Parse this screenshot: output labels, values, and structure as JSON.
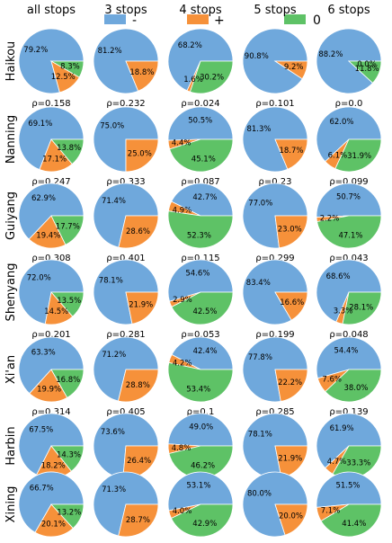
{
  "columns": [
    "all stops",
    "3 stops",
    "4 stops",
    "5 stops",
    "6 stops"
  ],
  "rows": [
    "Haikou",
    "Nanning",
    "Guiyang",
    "Shenyang",
    "Xi'an",
    "Harbin",
    "Xining"
  ],
  "legend": [
    {
      "label": "-",
      "color": "#6fa8dc"
    },
    {
      "label": "+",
      "color": "#f6913a"
    },
    {
      "label": "0",
      "color": "#5ec266"
    }
  ],
  "rho_symbol": "ρ=",
  "chart_data": {
    "type": "pie",
    "slice_order": [
      "-",
      "+",
      "0"
    ],
    "colors": {
      "-": "#6fa8dc",
      "+": "#f6913a",
      "0": "#5ec266"
    },
    "value_format": "percent (1 decimal)",
    "cells": [
      [
        {
          "values": [
            79.2,
            12.5,
            8.3
          ],
          "rho": "ρ=0.158"
        },
        {
          "values": [
            81.2,
            18.8,
            0.0
          ],
          "rho": "ρ=0.232"
        },
        {
          "values": [
            68.2,
            1.6,
            30.2
          ],
          "rho": "ρ=0.024"
        },
        {
          "values": [
            90.8,
            9.2,
            0.0
          ],
          "rho": "ρ=0.101"
        },
        {
          "values": [
            88.2,
            0.0,
            11.8
          ],
          "rho": "ρ=0.0"
        }
      ],
      [
        {
          "values": [
            69.1,
            17.1,
            13.8
          ],
          "rho": "ρ=0.247"
        },
        {
          "values": [
            75.0,
            25.0,
            0.0
          ],
          "rho": "ρ=0.333"
        },
        {
          "values": [
            50.5,
            4.4,
            45.1
          ],
          "rho": "ρ=0.087"
        },
        {
          "values": [
            81.3,
            18.7,
            0.0
          ],
          "rho": "ρ=0.23"
        },
        {
          "values": [
            62.0,
            6.1,
            31.9
          ],
          "rho": "ρ=0.099"
        }
      ],
      [
        {
          "values": [
            62.9,
            19.4,
            17.7
          ],
          "rho": "ρ=0.308"
        },
        {
          "values": [
            71.4,
            28.6,
            0.0
          ],
          "rho": "ρ=0.401"
        },
        {
          "values": [
            42.7,
            4.9,
            52.3
          ],
          "rho": "ρ=0.115"
        },
        {
          "values": [
            77.0,
            23.0,
            0.0
          ],
          "rho": "ρ=0.299"
        },
        {
          "values": [
            50.7,
            2.2,
            47.1
          ],
          "rho": "ρ=0.043"
        }
      ],
      [
        {
          "values": [
            72.0,
            14.5,
            13.5
          ],
          "rho": "ρ=0.201"
        },
        {
          "values": [
            78.1,
            21.9,
            0.0
          ],
          "rho": "ρ=0.281"
        },
        {
          "values": [
            54.6,
            2.9,
            42.5
          ],
          "rho": "ρ=0.053"
        },
        {
          "values": [
            83.4,
            16.6,
            0.0
          ],
          "rho": "ρ=0.199"
        },
        {
          "values": [
            68.6,
            3.3,
            28.1
          ],
          "rho": "ρ=0.048"
        }
      ],
      [
        {
          "values": [
            63.3,
            19.9,
            16.8
          ],
          "rho": "ρ=0.314"
        },
        {
          "values": [
            71.2,
            28.8,
            0.0
          ],
          "rho": "ρ=0.405"
        },
        {
          "values": [
            42.4,
            4.2,
            53.4
          ],
          "rho": "ρ=0.1"
        },
        {
          "values": [
            77.8,
            22.2,
            0.0
          ],
          "rho": "ρ=0.285"
        },
        {
          "values": [
            54.4,
            7.6,
            38.0
          ],
          "rho": "ρ=0.139"
        }
      ],
      [
        {
          "values": [
            67.5,
            18.2,
            14.3
          ],
          "rho": "ρ=0.27"
        },
        {
          "values": [
            73.6,
            26.4,
            0.0
          ],
          "rho": "ρ=0.358"
        },
        {
          "values": [
            49.0,
            4.8,
            46.2
          ],
          "rho": "ρ=0.097"
        },
        {
          "values": [
            78.1,
            21.9,
            0.0
          ],
          "rho": "ρ=0.28"
        },
        {
          "values": [
            61.9,
            4.7,
            33.3
          ],
          "rho": "ρ=0.076"
        }
      ],
      [
        {
          "values": [
            66.7,
            20.1,
            13.2
          ],
          "rho": "ρ=0.301"
        },
        {
          "values": [
            71.3,
            28.7,
            0.0
          ],
          "rho": "ρ=0.403"
        },
        {
          "values": [
            53.1,
            4.0,
            42.9
          ],
          "rho": "ρ=0.076"
        },
        {
          "values": [
            80.0,
            20.0,
            0.0
          ],
          "rho": "ρ=0.25"
        },
        {
          "values": [
            51.5,
            7.1,
            41.4
          ],
          "rho": "ρ=0.137"
        }
      ]
    ]
  }
}
